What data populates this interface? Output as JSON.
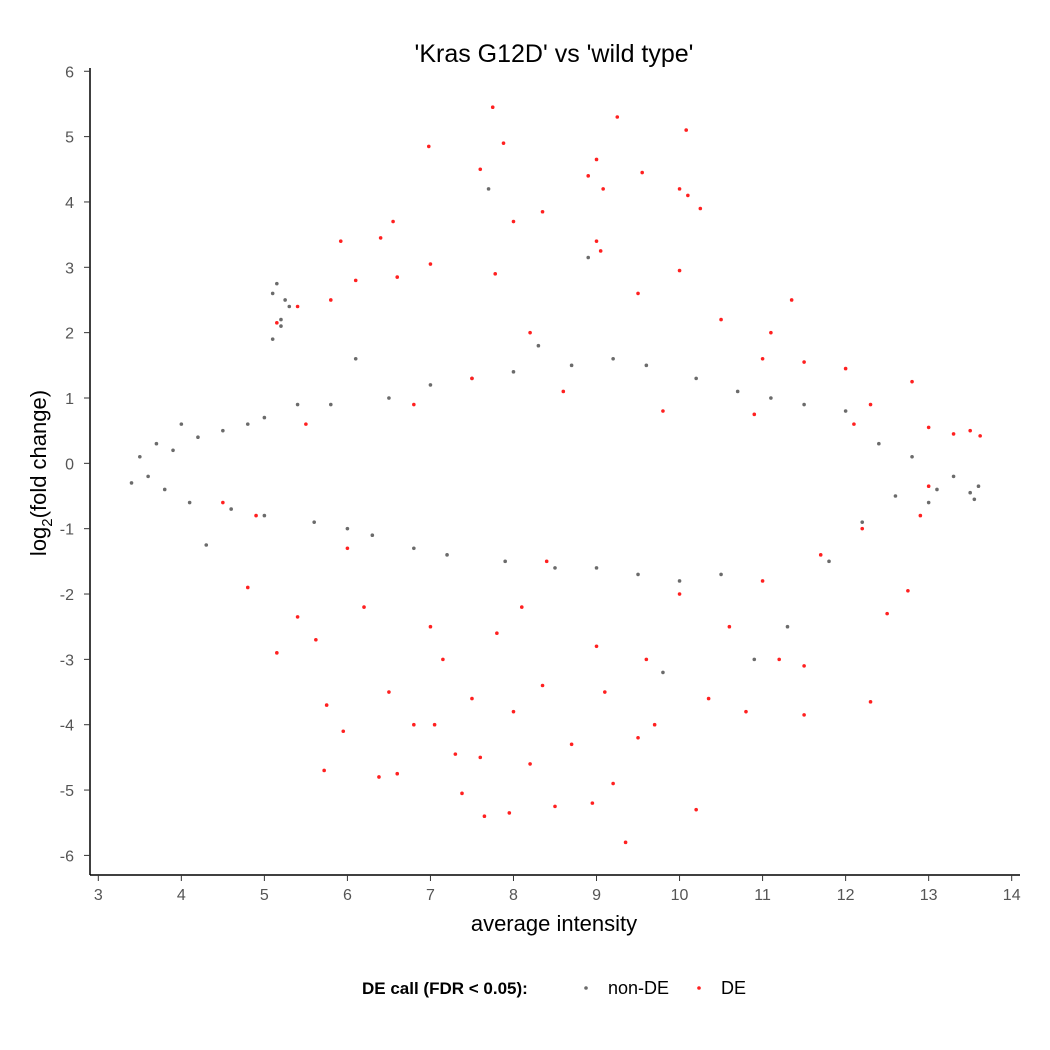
{
  "chart_data": {
    "type": "scatter",
    "title": "'Kras G12D' vs 'wild type'",
    "xlabel": "average intensity",
    "ylabel_main": "log",
    "ylabel_sub": "2",
    "ylabel_rest": "(fold change)",
    "xlim": [
      2.9,
      14.1
    ],
    "ylim": [
      -6.3,
      6.05
    ],
    "x_ticks": [
      3,
      4,
      5,
      6,
      7,
      8,
      9,
      10,
      11,
      12,
      13,
      14
    ],
    "y_ticks": [
      6,
      5,
      4,
      3,
      2,
      1,
      0,
      -1,
      -2,
      -3,
      -4,
      -5,
      -6
    ],
    "grid": false,
    "legend": {
      "placement": "bottom",
      "title": "DE call (FDR < 0.05):",
      "entries": [
        {
          "label": "non-DE",
          "color": "#6b6b6b"
        },
        {
          "label": "DE",
          "color": "#ff2020"
        }
      ]
    },
    "series": [
      {
        "name": "non-DE",
        "color": "#6b6b6b",
        "points": [
          [
            3.4,
            -0.3
          ],
          [
            3.5,
            0.1
          ],
          [
            3.6,
            -0.2
          ],
          [
            3.7,
            0.3
          ],
          [
            3.8,
            -0.4
          ],
          [
            3.9,
            0.2
          ],
          [
            4.0,
            0.6
          ],
          [
            4.1,
            -0.6
          ],
          [
            4.2,
            0.4
          ],
          [
            4.3,
            -1.25
          ],
          [
            4.5,
            0.5
          ],
          [
            4.6,
            -0.7
          ],
          [
            4.8,
            0.6
          ],
          [
            5.0,
            0.7
          ],
          [
            5.0,
            -0.8
          ],
          [
            5.1,
            1.9
          ],
          [
            5.15,
            2.75
          ],
          [
            5.2,
            2.1
          ],
          [
            5.25,
            2.5
          ],
          [
            5.3,
            2.4
          ],
          [
            5.1,
            2.6
          ],
          [
            5.2,
            2.2
          ],
          [
            5.4,
            0.9
          ],
          [
            5.6,
            -0.9
          ],
          [
            5.8,
            0.9
          ],
          [
            6.0,
            -1.0
          ],
          [
            6.1,
            1.6
          ],
          [
            6.3,
            -1.1
          ],
          [
            6.5,
            1.0
          ],
          [
            6.8,
            -1.3
          ],
          [
            7.0,
            1.2
          ],
          [
            7.2,
            -1.4
          ],
          [
            7.5,
            1.3
          ],
          [
            7.7,
            4.2
          ],
          [
            7.9,
            -1.5
          ],
          [
            8.0,
            1.4
          ],
          [
            8.3,
            1.8
          ],
          [
            8.5,
            -1.6
          ],
          [
            8.7,
            1.5
          ],
          [
            8.9,
            3.15
          ],
          [
            9.0,
            -1.6
          ],
          [
            9.2,
            1.6
          ],
          [
            9.5,
            -1.7
          ],
          [
            9.6,
            1.5
          ],
          [
            9.8,
            -3.2
          ],
          [
            10.0,
            -1.8
          ],
          [
            10.2,
            1.3
          ],
          [
            10.5,
            -1.7
          ],
          [
            10.7,
            1.1
          ],
          [
            10.9,
            -3.0
          ],
          [
            11.1,
            1.0
          ],
          [
            11.3,
            -2.5
          ],
          [
            11.5,
            0.9
          ],
          [
            11.8,
            -1.5
          ],
          [
            12.0,
            0.8
          ],
          [
            12.2,
            -0.9
          ],
          [
            12.4,
            0.3
          ],
          [
            12.6,
            -0.5
          ],
          [
            12.8,
            0.1
          ],
          [
            13.0,
            -0.6
          ],
          [
            13.1,
            -0.4
          ],
          [
            13.3,
            -0.2
          ],
          [
            13.5,
            -0.45
          ],
          [
            13.55,
            -0.55
          ],
          [
            13.6,
            -0.35
          ]
        ]
      },
      {
        "name": "DE",
        "color": "#ff2020",
        "points": [
          [
            7.75,
            5.45
          ],
          [
            9.25,
            5.3
          ],
          [
            10.08,
            5.1
          ],
          [
            7.88,
            4.9
          ],
          [
            6.98,
            4.85
          ],
          [
            9.0,
            4.65
          ],
          [
            7.6,
            4.5
          ],
          [
            8.9,
            4.4
          ],
          [
            9.55,
            4.45
          ],
          [
            9.08,
            4.2
          ],
          [
            10.0,
            4.2
          ],
          [
            10.1,
            4.1
          ],
          [
            10.25,
            3.9
          ],
          [
            8.0,
            3.7
          ],
          [
            8.35,
            3.85
          ],
          [
            6.55,
            3.7
          ],
          [
            6.4,
            3.45
          ],
          [
            5.92,
            3.4
          ],
          [
            9.0,
            3.4
          ],
          [
            9.05,
            3.25
          ],
          [
            7.0,
            3.05
          ],
          [
            6.6,
            2.85
          ],
          [
            6.1,
            2.8
          ],
          [
            7.78,
            2.9
          ],
          [
            10.0,
            2.95
          ],
          [
            5.15,
            2.15
          ],
          [
            5.4,
            2.4
          ],
          [
            5.8,
            2.5
          ],
          [
            7.5,
            1.3
          ],
          [
            8.2,
            2.0
          ],
          [
            9.5,
            2.6
          ],
          [
            10.5,
            2.2
          ],
          [
            11.0,
            1.6
          ],
          [
            11.1,
            2.0
          ],
          [
            11.35,
            2.5
          ],
          [
            11.5,
            1.55
          ],
          [
            12.0,
            1.45
          ],
          [
            12.8,
            1.25
          ],
          [
            12.3,
            0.9
          ],
          [
            13.0,
            0.55
          ],
          [
            13.3,
            0.45
          ],
          [
            13.5,
            0.5
          ],
          [
            13.62,
            0.42
          ],
          [
            5.5,
            0.6
          ],
          [
            6.8,
            0.9
          ],
          [
            8.6,
            1.1
          ],
          [
            9.8,
            0.8
          ],
          [
            10.9,
            0.75
          ],
          [
            12.1,
            0.6
          ],
          [
            4.5,
            -0.6
          ],
          [
            5.15,
            -2.9
          ],
          [
            5.4,
            -2.35
          ],
          [
            5.62,
            -2.7
          ],
          [
            5.72,
            -4.7
          ],
          [
            5.75,
            -3.7
          ],
          [
            5.95,
            -4.1
          ],
          [
            6.2,
            -2.2
          ],
          [
            6.38,
            -4.8
          ],
          [
            6.5,
            -3.5
          ],
          [
            6.6,
            -4.75
          ],
          [
            6.8,
            -4.0
          ],
          [
            7.0,
            -2.5
          ],
          [
            7.05,
            -4.0
          ],
          [
            7.15,
            -3.0
          ],
          [
            7.3,
            -4.45
          ],
          [
            7.38,
            -5.05
          ],
          [
            7.5,
            -3.6
          ],
          [
            7.6,
            -4.5
          ],
          [
            7.65,
            -5.4
          ],
          [
            7.8,
            -2.6
          ],
          [
            7.95,
            -5.35
          ],
          [
            8.0,
            -3.8
          ],
          [
            8.2,
            -4.6
          ],
          [
            8.35,
            -3.4
          ],
          [
            8.5,
            -5.25
          ],
          [
            8.7,
            -4.3
          ],
          [
            8.95,
            -5.2
          ],
          [
            9.1,
            -3.5
          ],
          [
            9.2,
            -4.9
          ],
          [
            9.35,
            -5.8
          ],
          [
            9.5,
            -4.2
          ],
          [
            9.6,
            -3.0
          ],
          [
            9.7,
            -4.0
          ],
          [
            10.2,
            -5.3
          ],
          [
            10.35,
            -3.6
          ],
          [
            10.8,
            -3.8
          ],
          [
            11.2,
            -3.0
          ],
          [
            11.5,
            -3.85
          ],
          [
            11.5,
            -3.1
          ],
          [
            12.3,
            -3.65
          ],
          [
            12.5,
            -2.3
          ],
          [
            12.75,
            -1.95
          ],
          [
            8.1,
            -2.2
          ],
          [
            9.0,
            -2.8
          ],
          [
            10.0,
            -2.0
          ],
          [
            10.6,
            -2.5
          ],
          [
            11.0,
            -1.8
          ],
          [
            11.7,
            -1.4
          ],
          [
            12.2,
            -1.0
          ],
          [
            12.9,
            -0.8
          ],
          [
            13.0,
            -0.35
          ],
          [
            4.8,
            -1.9
          ],
          [
            4.9,
            -0.8
          ],
          [
            6.0,
            -1.3
          ],
          [
            8.4,
            -1.5
          ]
        ]
      }
    ]
  }
}
